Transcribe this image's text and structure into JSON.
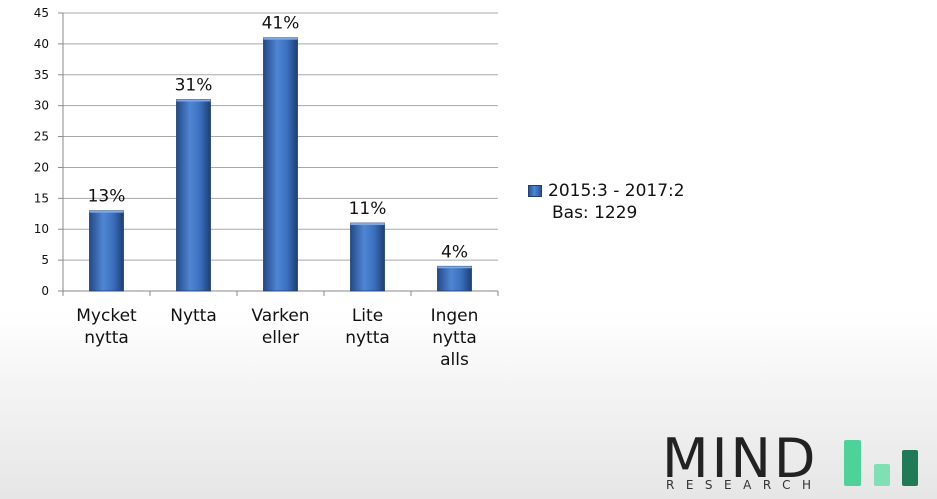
{
  "chart_data": {
    "type": "bar",
    "categories": [
      [
        "Mycket",
        "nytta"
      ],
      [
        "Nytta"
      ],
      [
        "Varken",
        "eller"
      ],
      [
        "Lite",
        "nytta"
      ],
      [
        "Ingen",
        "nytta",
        "alls"
      ]
    ],
    "values": [
      13,
      31,
      41,
      11,
      4
    ],
    "data_labels": [
      "13%",
      "31%",
      "41%",
      "11%",
      "4%"
    ],
    "ylim": [
      0,
      45
    ],
    "yticks": [
      0,
      5,
      10,
      15,
      20,
      25,
      30,
      35,
      40,
      45
    ],
    "grid": true,
    "legend_position": "right",
    "series": [
      {
        "name": "2015:3 - 2017:2",
        "values": [
          13,
          31,
          41,
          11,
          4
        ]
      }
    ],
    "bar_color": "#3a6fbd"
  },
  "legend": {
    "series_label": "2015:3 - 2017:2",
    "base_label": "Bas: 1229"
  },
  "logo": {
    "word": "MIND",
    "sub": "RESEARCH",
    "bar_colors": [
      "#4dd39a",
      "#7fe0b4",
      "#1f7a55"
    ]
  }
}
